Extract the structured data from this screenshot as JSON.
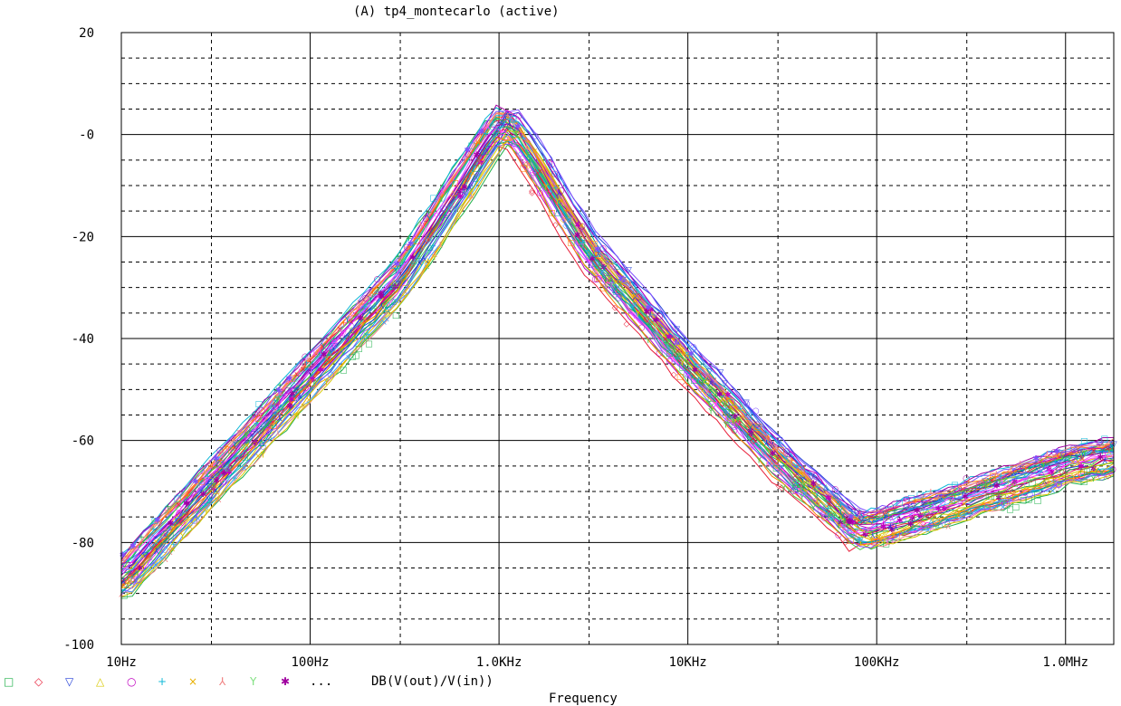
{
  "chart_data": {
    "type": "line",
    "title": "(A) tp4_montecarlo (active)",
    "xlabel": "Frequency",
    "ylabel": "",
    "x_scale": "log",
    "xlim": [
      "10Hz",
      "1.8MHz"
    ],
    "ylim": [
      -100,
      20
    ],
    "x_ticks": [
      {
        "label": "10Hz",
        "value": 10
      },
      {
        "label": "100Hz",
        "value": 100
      },
      {
        "label": "1.0KHz",
        "value": 1000
      },
      {
        "label": "10KHz",
        "value": 10000
      },
      {
        "label": "100KHz",
        "value": 100000
      },
      {
        "label": "1.0MHz",
        "value": 1000000
      }
    ],
    "y_ticks": [
      "20",
      "-0",
      "-20",
      "-40",
      "-60",
      "-80",
      "-100"
    ],
    "y_tick_values": [
      20,
      0,
      -20,
      -40,
      -60,
      -80,
      -100
    ],
    "grid": true,
    "legend": {
      "placement": "bottom-left",
      "markers": [
        {
          "symbol": "□",
          "color": "#22b14c"
        },
        {
          "symbol": "◇",
          "color": "#e8203a"
        },
        {
          "symbol": "▽",
          "color": "#1f3cd6"
        },
        {
          "symbol": "△",
          "color": "#d8c800"
        },
        {
          "symbol": "○",
          "color": "#c000c0"
        },
        {
          "symbol": "+",
          "color": "#10b8d8"
        },
        {
          "symbol": "×",
          "color": "#e8b000"
        },
        {
          "symbol": "⅄",
          "color": "#f08080"
        },
        {
          "symbol": "Y",
          "color": "#80e080"
        },
        {
          "symbol": "✱",
          "color": "#a000a0"
        }
      ],
      "ellipsis": "...",
      "trace_label": "DB(V(out)/V(in))"
    },
    "series_colors": [
      "#22b14c",
      "#e8203a",
      "#1f3cd6",
      "#d8c800",
      "#c000c0",
      "#10b8d8",
      "#e8b000",
      "#f08080",
      "#4ac84a",
      "#a000a0",
      "#ff7f00",
      "#3d9bff",
      "#ff40ff",
      "#00a0a0",
      "#8050ff"
    ],
    "nominal_response": {
      "x": [
        10,
        30,
        100,
        300,
        1000,
        1200,
        3000,
        10000,
        30000,
        80000,
        150000,
        400000,
        1000000,
        1800000
      ],
      "y": [
        -87,
        -68,
        -47,
        -28,
        2,
        1,
        -23,
        -45,
        -64,
        -78,
        -75,
        -70,
        -65,
        -63
      ]
    },
    "monte_carlo_spread_db": 3.5
  }
}
